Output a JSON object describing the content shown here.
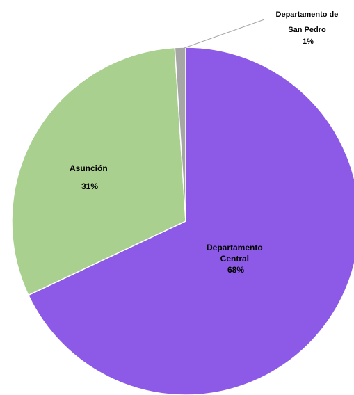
{
  "chart_data": {
    "type": "pie",
    "slices": [
      {
        "label": "Departamento Central",
        "value": 68,
        "value_label": "68%",
        "color": "#8d5ae8"
      },
      {
        "label": "Asunción",
        "value": 31,
        "value_label": "31%",
        "color": "#a9d08e"
      },
      {
        "label": "Departamento de San Pedro",
        "value": 1,
        "value_label": "1%",
        "color": "#a6a6a6"
      }
    ],
    "labels": {
      "central_line1": "Departamento",
      "central_line2": "Central",
      "central_pct": "68%",
      "asuncion_line1": "Asunción",
      "asuncion_pct": "31%",
      "sanpedro_line1": "Departamento de",
      "sanpedro_line2": "San Pedro",
      "sanpedro_pct": "1%"
    }
  }
}
